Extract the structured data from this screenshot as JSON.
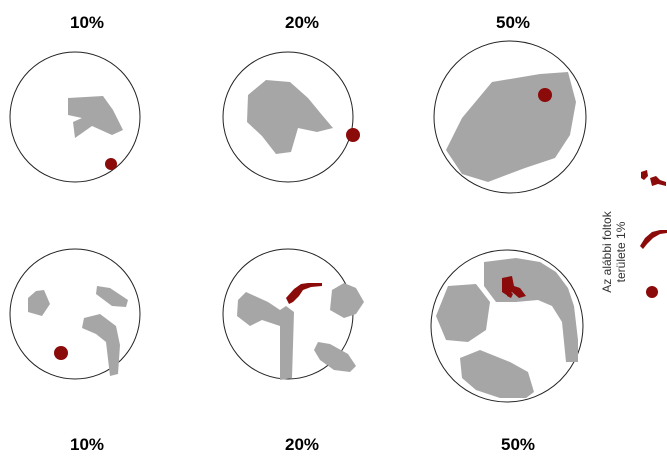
{
  "figure": {
    "colors": {
      "background": "#ffffff",
      "circle_stroke": "#222222",
      "grey_blot": "#a6a6a6",
      "red_spot": "#8b0a0a"
    },
    "top_row": [
      {
        "label": "10%",
        "grey_coverage_percent": 10
      },
      {
        "label": "20%",
        "grey_coverage_percent": 20
      },
      {
        "label": "50%",
        "grey_coverage_percent": 50
      }
    ],
    "bottom_row": [
      {
        "label": "10%",
        "grey_coverage_percent": 10
      },
      {
        "label": "20%",
        "grey_coverage_percent": 20
      },
      {
        "label": "50%",
        "grey_coverage_percent": 50
      }
    ],
    "side_note": {
      "line1": "Az alábbi foltok",
      "line2": "területe 1%"
    }
  }
}
